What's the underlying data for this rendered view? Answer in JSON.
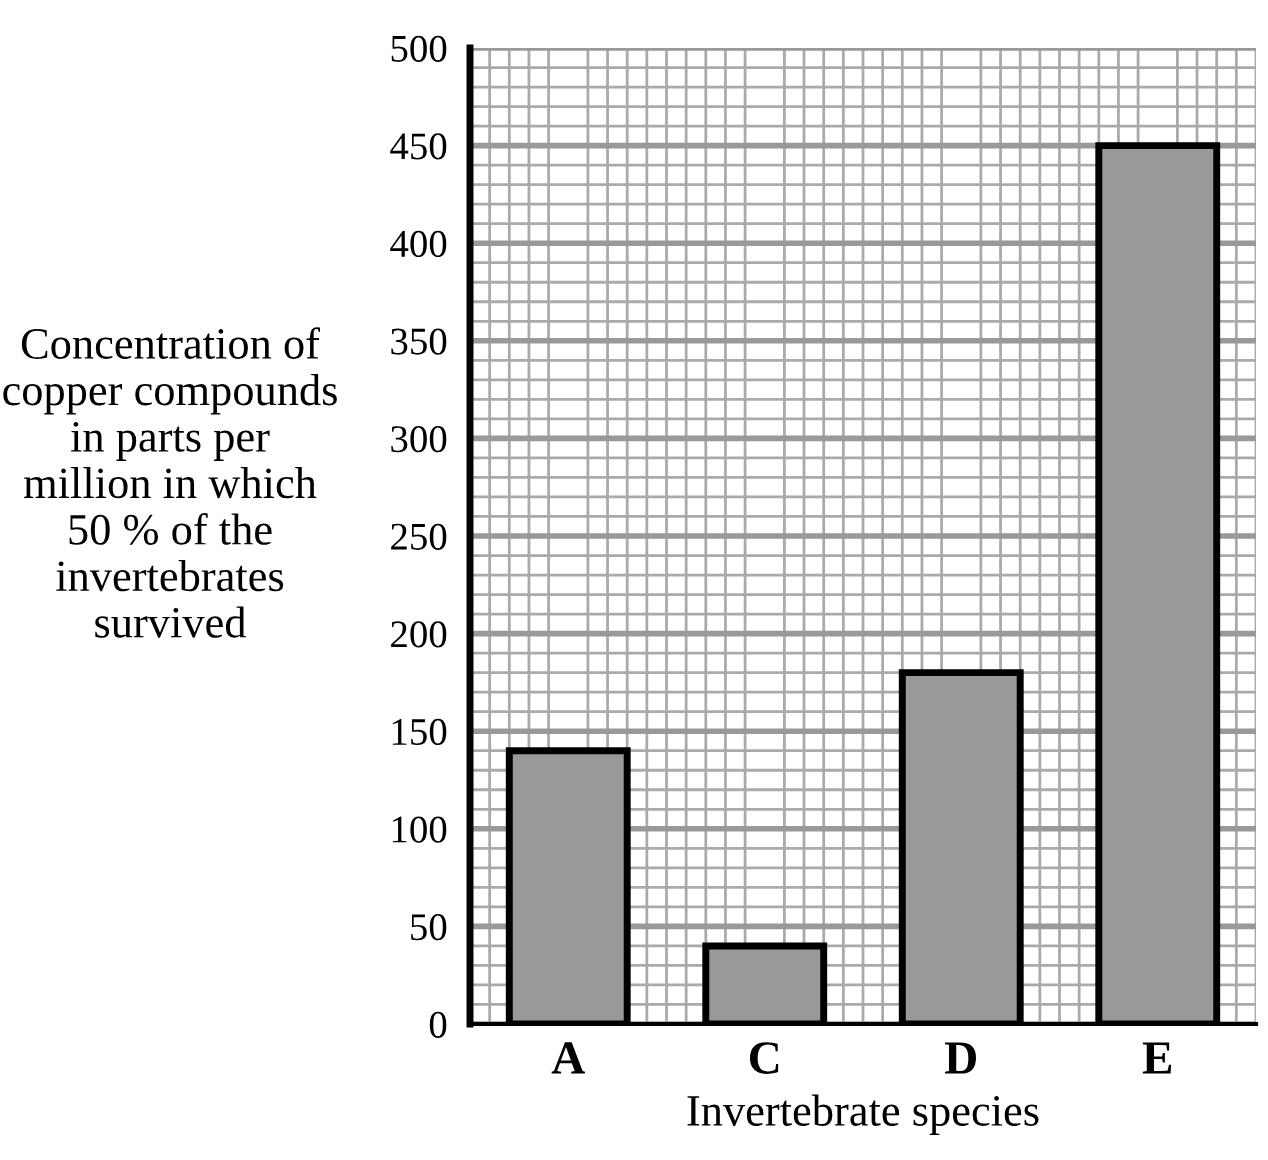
{
  "chart_data": {
    "type": "bar",
    "categories": [
      "A",
      "C",
      "D",
      "E"
    ],
    "values": [
      140,
      40,
      180,
      450
    ],
    "color": "#999999",
    "xlabel": "Invertebrate species",
    "ylabel": "Concentration of copper compounds in parts per million in which 50 % of the invertebrates survived",
    "ylim": [
      0,
      500
    ],
    "yticks": [
      0,
      50,
      100,
      150,
      200,
      250,
      300,
      350,
      400,
      450,
      500
    ],
    "grid": true,
    "legend": false
  }
}
